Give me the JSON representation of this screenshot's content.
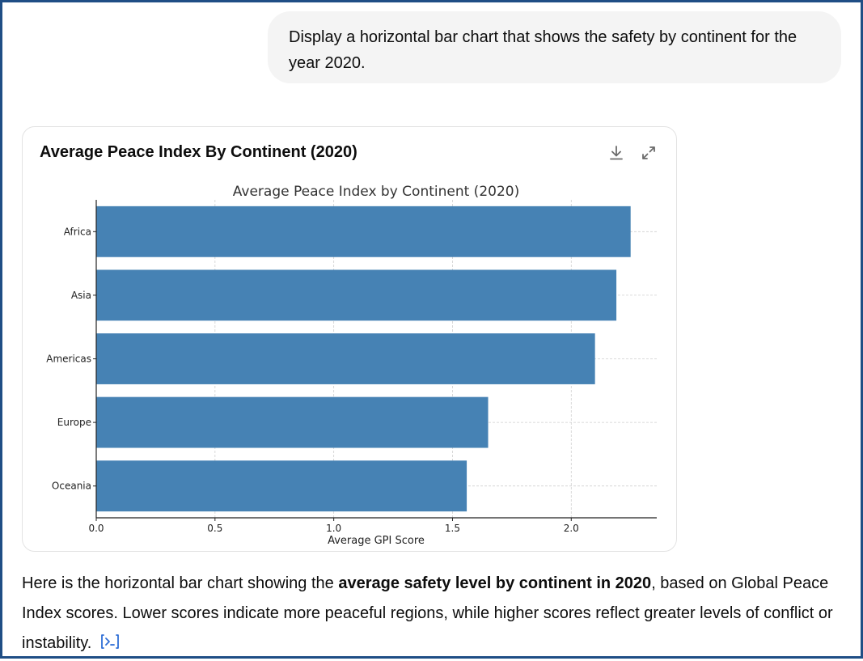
{
  "user_message": "Display a horizontal bar chart that shows the safety by continent for the year 2020.",
  "card": {
    "title": "Average Peace Index By Continent (2020)",
    "download_icon": "download-icon",
    "expand_icon": "expand-icon"
  },
  "response": {
    "part1": "Here is the horizontal bar chart showing the ",
    "bold": "average safety level by continent in 2020",
    "part2": ", based on Global Peace Index scores. Lower scores indicate more peaceful regions, while higher scores reflect greater levels of conflict or instability.",
    "code_icon": "code-view-icon"
  },
  "colors": {
    "bar": "#4682b4",
    "frame": "#1f4e85"
  },
  "chart_data": {
    "type": "bar",
    "orientation": "horizontal",
    "title": "Average Peace Index by Continent (2020)",
    "xlabel": "Average GPI Score",
    "ylabel": "",
    "categories": [
      "Africa",
      "Asia",
      "Americas",
      "Europe",
      "Oceania"
    ],
    "values": [
      2.25,
      2.19,
      2.1,
      1.65,
      1.56
    ],
    "xlim": [
      0,
      2.36
    ],
    "xticks": [
      "0.0",
      "0.5",
      "1.0",
      "1.5",
      "2.0"
    ],
    "grid": true
  }
}
